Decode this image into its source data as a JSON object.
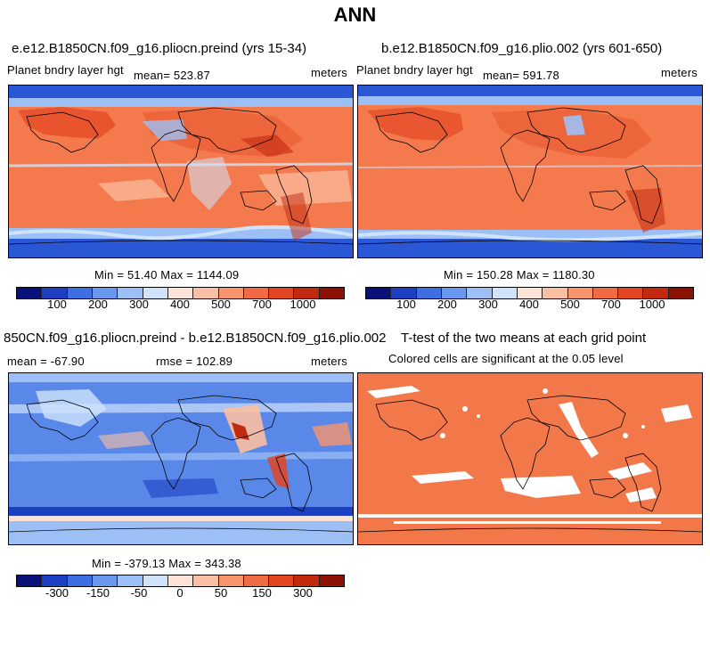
{
  "page_title": "ANN",
  "panels": [
    {
      "title": "e.e12.B1850CN.f09_g16.pliocn.preind (yrs 15-34)",
      "field_label": "Planet bndry layer hgt",
      "mean": "mean= 523.87",
      "units": "meters",
      "stats": "Min =  51.40 Max = 1144.09",
      "colorbar_labels": [
        "100",
        "200",
        "300",
        "400",
        "500",
        "700",
        "1000"
      ]
    },
    {
      "title": "b.e12.B1850CN.f09_g16.plio.002 (yrs 601-650)",
      "field_label": "Planet bndry layer hgt",
      "mean": "mean= 591.78",
      "units": "meters",
      "stats": "Min = 150.28 Max = 1180.30",
      "colorbar_labels": [
        "100",
        "200",
        "300",
        "400",
        "500",
        "700",
        "1000"
      ]
    },
    {
      "title": "850CN.f09_g16.pliocn.preind - b.e12.B1850CN.f09_g16.plio.002",
      "mean": "mean = -67.90",
      "rmse": "rmse = 102.89",
      "units": "meters",
      "stats": "Min = -379.13 Max = 343.38",
      "colorbar_labels": [
        "-300",
        "-150",
        "-50",
        "0",
        "50",
        "150",
        "300"
      ]
    },
    {
      "title": "T-test of the two means at each grid point",
      "subtitle": "Colored cells are significant at the 0.05 level"
    }
  ],
  "colors": {
    "abs_scale": [
      "#08107a",
      "#1d3fc2",
      "#3d6fe0",
      "#6a98ee",
      "#9cc0f5",
      "#cfe3fb",
      "#fde2d6",
      "#fbbfa3",
      "#f7946d",
      "#f06b43",
      "#e24521",
      "#c22a10",
      "#8c1204"
    ],
    "diff_scale": [
      "#08107a",
      "#1d3fc2",
      "#3d6fe0",
      "#6a98ee",
      "#9cc0f5",
      "#cfe3fb",
      "#fde2d6",
      "#fbbfa3",
      "#f7946d",
      "#f06b43",
      "#e24521",
      "#c22a10",
      "#8c1204"
    ],
    "significant": "#f2784a"
  }
}
